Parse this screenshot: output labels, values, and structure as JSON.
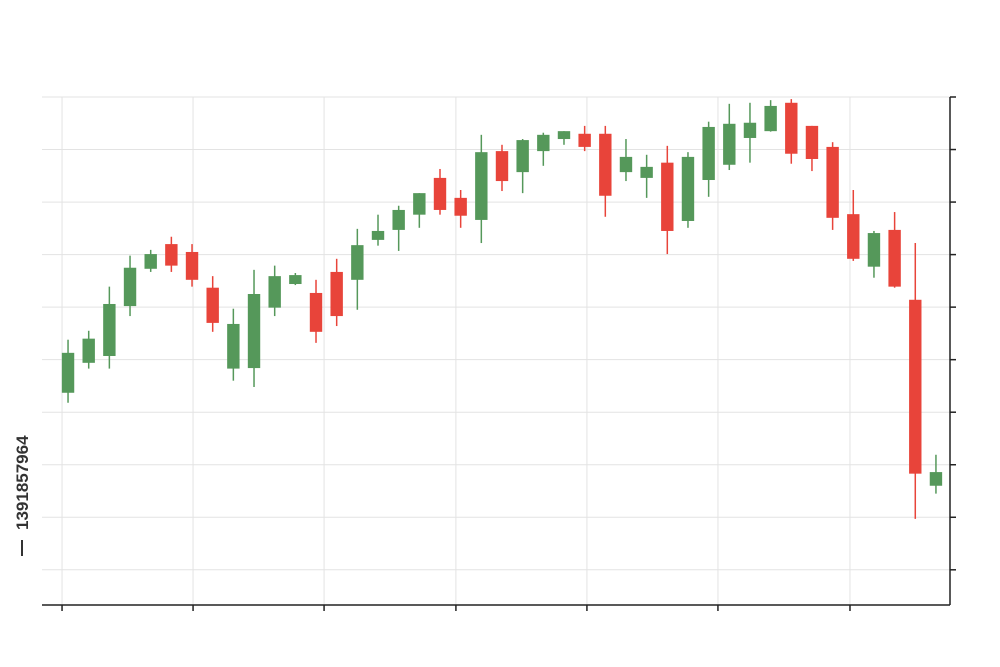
{
  "image_id": "1391857964",
  "chart_data": {
    "type": "candlestick",
    "x": [
      0,
      1,
      2,
      3,
      4,
      5,
      6,
      7,
      8,
      9,
      10,
      11,
      12,
      13,
      14,
      15,
      16,
      17,
      18,
      19,
      20,
      21,
      22,
      23,
      24,
      25,
      26,
      27,
      28,
      29,
      30,
      31,
      32,
      33,
      34,
      35,
      36,
      37,
      38,
      39,
      40,
      41,
      42
    ],
    "open": [
      43.7,
      49.4,
      50.7,
      60.2,
      67.3,
      72.0,
      70.5,
      63.7,
      48.3,
      48.4,
      59.9,
      64.4,
      62.7,
      66.7,
      65.2,
      72.8,
      74.7,
      77.6,
      84.6,
      80.8,
      76.6,
      89.7,
      85.7,
      89.7,
      92.0,
      93.0,
      93.0,
      85.7,
      84.6,
      87.5,
      76.4,
      84.2,
      87.1,
      92.2,
      93.5,
      98.9,
      94.5,
      90.5,
      77.7,
      67.7,
      74.7,
      61.4,
      26.0
    ],
    "high": [
      53.8,
      55.5,
      63.9,
      69.8,
      70.9,
      73.4,
      72.0,
      65.9,
      59.7,
      67.1,
      67.9,
      66.5,
      65.2,
      69.2,
      74.9,
      77.6,
      79.3,
      81.7,
      86.3,
      82.3,
      92.8,
      90.9,
      92.0,
      93.2,
      93.5,
      94.5,
      94.5,
      92.0,
      89.0,
      90.7,
      89.5,
      95.3,
      98.7,
      98.9,
      99.4,
      99.6,
      94.5,
      91.4,
      82.3,
      74.5,
      78.1,
      72.2,
      31.9
    ],
    "low": [
      41.8,
      48.3,
      48.3,
      58.3,
      66.7,
      66.7,
      63.9,
      55.3,
      46.0,
      44.8,
      58.3,
      64.2,
      53.2,
      56.4,
      59.5,
      71.7,
      70.7,
      75.1,
      77.6,
      75.1,
      72.2,
      82.1,
      81.7,
      86.9,
      90.9,
      89.7,
      77.2,
      84.0,
      80.8,
      70.1,
      75.1,
      81.0,
      86.1,
      87.5,
      93.4,
      87.3,
      85.9,
      74.7,
      68.8,
      65.6,
      63.7,
      19.7,
      24.5
    ],
    "close": [
      51.3,
      54.0,
      60.6,
      67.5,
      70.1,
      67.9,
      65.2,
      57.0,
      56.8,
      62.5,
      65.9,
      66.1,
      55.3,
      58.3,
      71.8,
      74.5,
      78.5,
      81.7,
      78.5,
      77.4,
      89.5,
      84.0,
      91.8,
      92.8,
      93.5,
      90.5,
      81.2,
      88.6,
      86.7,
      74.5,
      88.6,
      94.3,
      94.9,
      95.1,
      98.3,
      89.2,
      88.2,
      77.0,
      69.2,
      74.1,
      63.9,
      28.3,
      28.6
    ],
    "up_color": "#55985a",
    "down_color": "#e8443a",
    "xlim": [
      -1.26,
      42.68
    ],
    "xticks": [
      -0.29,
      6.05,
      12.39,
      18.77,
      25.11,
      31.45,
      37.84
    ],
    "ylim": [
      3.3,
      100
    ],
    "yticks": [
      10,
      20,
      30,
      40,
      50,
      60,
      70,
      80,
      90,
      100
    ],
    "grid": true
  }
}
